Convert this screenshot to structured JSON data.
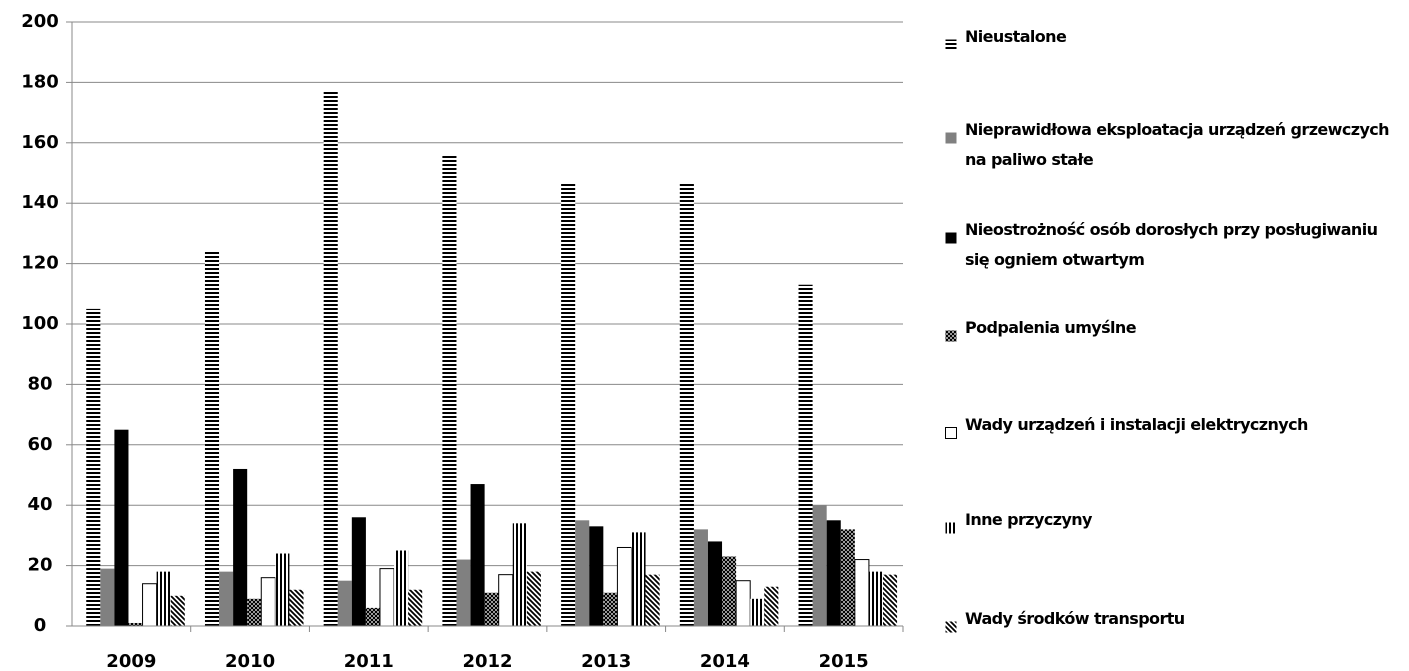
{
  "chart_data": {
    "type": "bar",
    "categories": [
      "2009",
      "2010",
      "2011",
      "2012",
      "2013",
      "2014",
      "2015"
    ],
    "series": [
      {
        "name": "Nieustalone",
        "color": "#000000",
        "pattern": "hstripe",
        "values": [
          105,
          124,
          177,
          156,
          147,
          147,
          113
        ]
      },
      {
        "name": "Nieprawidłowa eksploatacja urządzeń grzewczych na paliwo stałe",
        "color": "#808080",
        "pattern": "solid",
        "values": [
          19,
          18,
          15,
          22,
          35,
          32,
          40
        ]
      },
      {
        "name": "Nieostrożność osób dorosłych przy posługiwaniu się ogniem otwartym",
        "color": "#000000",
        "pattern": "solid",
        "values": [
          65,
          52,
          36,
          47,
          33,
          28,
          35
        ]
      },
      {
        "name": "Podpalenia umyślne",
        "color": "#000000",
        "pattern": "cross",
        "values": [
          1,
          9,
          6,
          11,
          11,
          23,
          32
        ]
      },
      {
        "name": "Wady urządzeń i instalacji elektrycznych",
        "color": "#ffffff",
        "pattern": "solid",
        "values": [
          14,
          16,
          19,
          17,
          26,
          15,
          22
        ]
      },
      {
        "name": "Inne przyczyny",
        "color": "#000000",
        "pattern": "vstripe",
        "values": [
          18,
          24,
          25,
          34,
          31,
          9,
          18
        ]
      },
      {
        "name": "Wady środków transportu",
        "color": "#000000",
        "pattern": "diag",
        "values": [
          10,
          12,
          12,
          18,
          17,
          13,
          17
        ]
      }
    ],
    "ylim": [
      0,
      200
    ],
    "yticks": [
      0,
      20,
      40,
      60,
      80,
      100,
      120,
      140,
      160,
      180,
      200
    ],
    "grid": true,
    "legend": "right"
  }
}
